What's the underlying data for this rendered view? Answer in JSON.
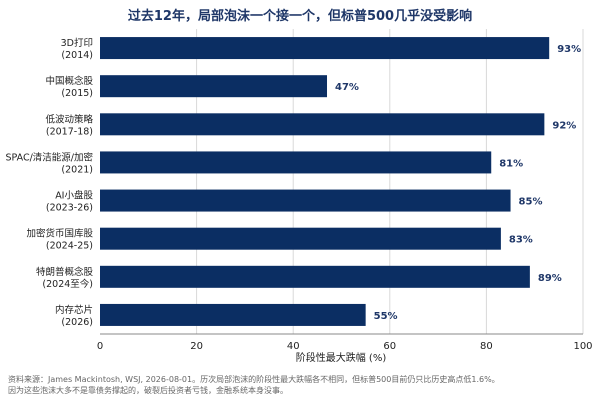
{
  "chart_data": {
    "type": "bar",
    "orientation": "horizontal",
    "title": "过去12年，局部泡沫一个接一个，但标普500几乎没受影响",
    "xlabel": "阶段性最大跌幅 (%)",
    "ylabel": "",
    "xlim": [
      0,
      100
    ],
    "x_ticks": [
      "0",
      "20",
      "40",
      "60",
      "80",
      "100"
    ],
    "grid": "vertical",
    "bar_color": "#0b2e63",
    "value_suffix": "%",
    "categories": [
      {
        "line1": "3D打印",
        "line2": "(2014)"
      },
      {
        "line1": "中国概念股",
        "line2": "(2015)"
      },
      {
        "line1": "低波动策略",
        "line2": "(2017-18)"
      },
      {
        "line1": "SPAC/清洁能源/加密",
        "line2": "(2021)"
      },
      {
        "line1": "AI小盘股",
        "line2": "(2023-26)"
      },
      {
        "line1": "加密货币国库股",
        "line2": "(2024-25)"
      },
      {
        "line1": "特朗普概念股",
        "line2": "(2024至今)"
      },
      {
        "line1": "内存芯片",
        "line2": "(2026)"
      }
    ],
    "values": [
      93,
      47,
      92,
      81,
      85,
      83,
      89,
      55
    ]
  },
  "footnote": {
    "line1": "资料来源：James Mackintosh, WSJ, 2026-08-01。历次局部泡沫的阶段性最大跌幅各不相同，但标普500目前仍只比历史高点低1.6%。",
    "line2": "因为这些泡沫大多不是靠债务撑起的，破裂后投资者亏钱，金融系统本身没事。"
  }
}
